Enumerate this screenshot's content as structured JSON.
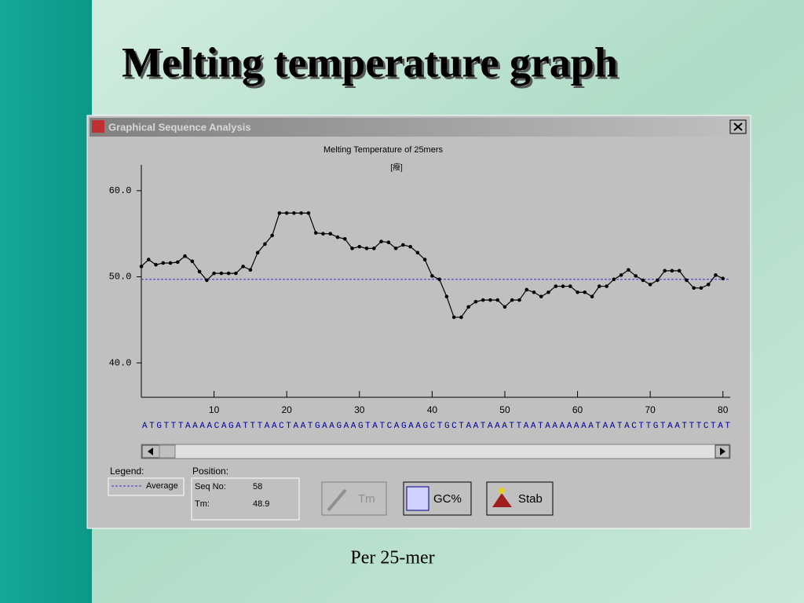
{
  "slide": {
    "title": "Melting temperature graph",
    "caption": "Per 25-mer"
  },
  "window": {
    "title": "Graphical Sequence Analysis"
  },
  "chart_data": {
    "type": "line",
    "title": "Melting Temperature of 25mers",
    "subtitle": "[癈]",
    "x": [
      0,
      1,
      2,
      3,
      4,
      5,
      6,
      7,
      8,
      9,
      10,
      11,
      12,
      13,
      14,
      15,
      16,
      17,
      18,
      19,
      20,
      21,
      22,
      23,
      24,
      25,
      26,
      27,
      28,
      29,
      30,
      31,
      32,
      33,
      34,
      35,
      36,
      37,
      38,
      39,
      40,
      41,
      42,
      43,
      44,
      45,
      46,
      47,
      48,
      49,
      50,
      51,
      52,
      53,
      54,
      55,
      56,
      57,
      58,
      59,
      60,
      61,
      62,
      63,
      64,
      65,
      66,
      67,
      68,
      69,
      70,
      71,
      72,
      73,
      74,
      75,
      76,
      77,
      78,
      79,
      80
    ],
    "xlim": [
      0,
      81
    ],
    "xticks": [
      10,
      20,
      30,
      40,
      50,
      60,
      70,
      80
    ],
    "ylim": [
      36,
      63
    ],
    "yticks": [
      {
        "value": 40,
        "label": "40.0"
      },
      {
        "value": 50,
        "label": "50.0"
      },
      {
        "value": 60,
        "label": "60.0"
      }
    ],
    "series": [
      {
        "color": "#000000",
        "values": [
          51.2,
          52.0,
          51.4,
          51.6,
          51.6,
          51.7,
          52.4,
          51.8,
          50.6,
          49.6,
          50.4,
          50.4,
          50.4,
          50.4,
          51.2,
          50.8,
          52.8,
          53.8,
          54.8,
          57.4,
          57.4,
          57.4,
          57.4,
          57.4,
          55.1,
          55.0,
          55.0,
          54.6,
          54.4,
          53.3,
          53.5,
          53.3,
          53.3,
          54.1,
          54.0,
          53.3,
          53.7,
          53.5,
          52.8,
          52.0,
          50.1,
          49.7,
          47.7,
          45.3,
          45.3,
          46.5,
          47.1,
          47.3,
          47.3,
          47.3,
          46.5,
          47.3,
          47.3,
          48.5,
          48.2,
          47.7,
          48.2,
          48.9,
          48.9,
          48.9,
          48.2,
          48.2,
          47.7,
          48.9,
          48.9,
          49.7,
          50.2,
          50.8,
          50.1,
          49.6,
          49.1,
          49.6,
          50.7,
          50.7,
          50.7,
          49.6,
          48.7,
          48.7,
          49.1,
          50.2,
          49.8
        ]
      }
    ],
    "average": {
      "name": "Average",
      "value": 49.7,
      "color": "#3333cc"
    },
    "sequence": "ATGTTTAAAACAGATTTAACTAATGAAGAAGTATCAGAAGCTGCTAATAAATTAATAAAAAAATAATACTTGTAATTTCTAT"
  },
  "legend": {
    "label": "Legend:"
  },
  "position": {
    "label": "Position:",
    "seq_no_label": "Seq No:",
    "seq_no": 58,
    "tm_label": "Tm:",
    "tm": 48.9
  },
  "buttons": [
    "Tm",
    "GC%",
    "Stab"
  ]
}
